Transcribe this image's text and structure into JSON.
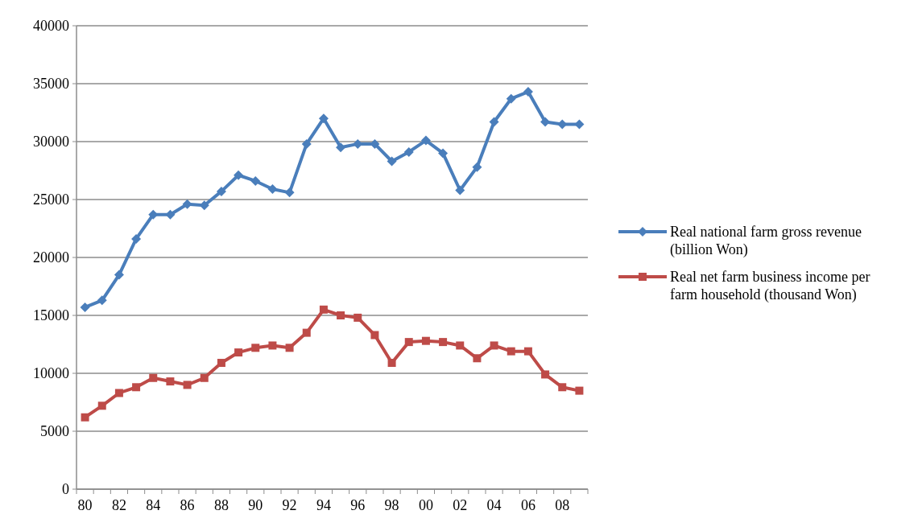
{
  "chart_data": {
    "type": "line",
    "categories": [
      "80",
      null,
      "82",
      null,
      "84",
      null,
      "86",
      null,
      "88",
      null,
      "90",
      null,
      "92",
      null,
      "94",
      null,
      "96",
      null,
      "98",
      null,
      "00",
      null,
      "02",
      null,
      "04",
      null,
      "06",
      null,
      "08",
      null
    ],
    "ylim": [
      0,
      40000
    ],
    "yticks": [
      0,
      5000,
      10000,
      15000,
      20000,
      25000,
      30000,
      35000,
      40000
    ],
    "grid": "y",
    "legend": "right",
    "series": [
      {
        "name": "Real national farm gross revenue (billion Won)",
        "color": "#4a7ebb",
        "marker": "diamond",
        "values": [
          15700,
          16300,
          18500,
          21600,
          23700,
          23700,
          24600,
          24500,
          25700,
          27100,
          26600,
          25900,
          25600,
          29800,
          32000,
          29500,
          29800,
          29800,
          28300,
          29100,
          30100,
          29000,
          25800,
          27800,
          31700,
          33700,
          34300,
          31700,
          31500,
          31500
        ]
      },
      {
        "name": "Real net farm business income per farm household (thousand Won)",
        "color": "#be4b48",
        "marker": "square",
        "values": [
          6200,
          7200,
          8300,
          8800,
          9600,
          9300,
          9000,
          9600,
          10900,
          11800,
          12200,
          12400,
          12200,
          13500,
          15500,
          15000,
          14800,
          13300,
          10900,
          12700,
          12800,
          12700,
          12400,
          11300,
          12400,
          11900,
          11900,
          9900,
          8800,
          8500
        ]
      }
    ]
  }
}
